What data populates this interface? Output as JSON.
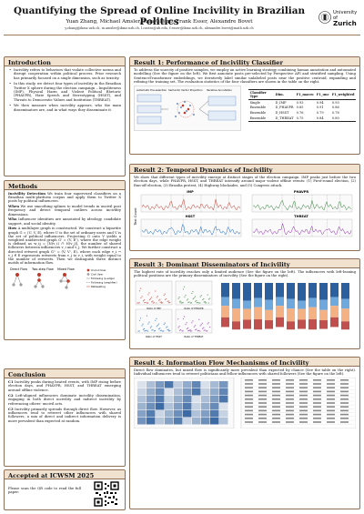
{
  "header": {
    "title": "Quantifying the Spread of Online Incivility in Brazilian Politics",
    "authors": "Yuan Zhang, Michael Amsler, Laia Castro, Frank Esser, Alexandre Bovet",
    "emails": "y.zhang@ikmz.uzh.ch, m.amsler@ikmz.uzh.ch, l.castro@ub.edu, f.esser@ikmz.uzh.ch, alexandre.bovet@math.uzh.ch",
    "logo_line1": "University of",
    "logo_line2": "Zurich"
  },
  "introduction": {
    "heading": "Introduction",
    "bullets": [
      "Incivility refers to behaviors that violate collective norms and disrupt cooperation within political process. Prior research has primarily focused on a single dimension, such as toxicity.",
      "In this study, we detect four types of incivility in the Brazilian Twitter X sphere during the election campaign – Impoliteness (IMP), Physical Harm and Violent Political Rhetoric (PHAVPR), Hate Speech and Stereotyping (HSST), and Threats to Democratic Values and Institution (THREAT).",
      "We then measure when incivility appears, who the main disseminators are, and in what ways they disseminate it."
    ]
  },
  "methods": {
    "heading": "Methods",
    "paragraphs": [
      {
        "lead": "Incivility Detection",
        "text": " We train four supervised classifiers on a Brazilian multi-platform corpus and apply them to Twitter X posts by political influencers."
      },
      {
        "lead": "When",
        "text": " We use smoothing splines to model trends in uncivil post frequency and detect temporal outliers across incivility dimensions."
      },
      {
        "lead": "Who",
        "text": " Influencer identities are annotated by ideology, candidate support, and social identity."
      },
      {
        "lead": "How",
        "text": " A multilayer graph is constructed. We construct a bipartite graph G = (U, V, E), where U is the set of ordinary users and V is the set of political influencers. Projecting G onto V yields a weighted unidirected graph G' = (V, E'), where the edge weight is defined as w_ij = |N(v_i) ∩ N(v_j)|, the number of shared followers between influencers v_i and v_j. We further construct a directed retweet graph G'' = (V, V', E), where each edge v_i → v_j ∈ E represents retweets from v_j to v_i, with weight equal to the number of retweets. Then we distinguish three distinct motifs of information flow."
      }
    ],
    "motif_labels": [
      "Direct Flow",
      "Two-step Flow",
      "Mixed Flow"
    ],
    "legend": [
      "Uncivil User",
      "Civil User",
      "Following (p-edge)",
      "Following (amplifier)",
      "Retweeting"
    ]
  },
  "conclusion": {
    "heading": "Conclusion",
    "items": [
      {
        "lead": "C1",
        "text": " Incivility peaks during heated events, with IMP rising before election days, and PHAVPR, HSST, and THREAT emerging around offline violence."
      },
      {
        "lead": "C2",
        "text": " Left-aligned influencers dominate incivility dissemination, engaging in both direct incivility and indirect incivility by referencing others' uncivil acts."
      },
      {
        "lead": "C3",
        "text": " Incivility primarily spreads through direct flow. However, as influencers tend to retweet other influencers with shared followers, a mix of direct and indirect information delivery is more prevalent than expected at random."
      }
    ]
  },
  "accepted": {
    "heading": "Accepted at ICWSM 2025",
    "text": "Please scan the QR code to read the full paper:"
  },
  "result1": {
    "heading": "Result 1: Performance of Incivility Classifier",
    "text": "To address the scarcity of positive samples, we employ an active learning strategy combining human annotation and automated modelling (See the figure on the left). We first annotate posts pre-selected by Perspective API and stratified sampling. Using SentenceTransformer embeddings, we iteratively label similar unlabeled posts near the positive centroid, expanding and refining the training set. The evaluation statistics of the four classifiers are shown in the table on the right.",
    "diagram_labels": [
      "Automatic Pre-selection",
      "Semantic Vector Projection",
      "Iterative Annotation"
    ],
    "table_headers": [
      "Classifier Type",
      "Dim.",
      "F1_macro",
      "F1_unc",
      "F1_weighted"
    ],
    "table_rows": [
      [
        "Single",
        "D_IMP",
        "0.93",
        "0.94",
        "0.93"
      ],
      [
        "Ensemble",
        "D_PHAVPR",
        "0.85",
        "0.91",
        "0.86"
      ],
      [
        "Ensemble",
        "D_HSST",
        "0.76",
        "0.79",
        "0.78"
      ],
      [
        "Ensemble",
        "D_THREAT",
        "0.75",
        "0.84",
        "0.80"
      ]
    ]
  },
  "result2": {
    "heading": "Result 2: Temporal Dynamics of Incivility",
    "text": "We show that different types of incivility emerge at distinct stages of the election campaign. IMP peaks just before the two election days, while PHAVPR, HSST, and THREAT intensify around major violent offline events: (1) First-round election, (2) Run-off election, (3) Brasilia protest, (4) Highway blockades, and (5) Congress attack.",
    "panels": [
      "IMP",
      "PHAVPR",
      "HSST",
      "THREAT"
    ],
    "ylabel": "Text Count"
  },
  "result3": {
    "heading": "Result 3: Dominant Disseminators of Incivility",
    "text": "The highest rate of incivility reaches only a limited audience (See the figure on the left). The influencers with left-leaning political positions are the primary disseminators of incivility (See the figure on the right).",
    "axis_labels": [
      "Ratio of IMP",
      "Ratio of PHAVPR",
      "Ratio of HSST",
      "Ratio of THREAT"
    ]
  },
  "result4": {
    "heading": "Result 4: Information Flow Mechanisms of Incivility",
    "text": "Direct flow dominates, but mixed flow is significantly more prevalent than expected by chance (See the table on the right). Individual influencers tend to retweet politicians and fellow influencers with shared followers (See the figure on the left)."
  },
  "colors": {
    "accent": "#8c6f55",
    "header_bg": "#f1e2cf",
    "imp": "#c0392b",
    "phavpr": "#2e7d32",
    "hsst": "#1565c0",
    "threat": "#8e24aa"
  }
}
